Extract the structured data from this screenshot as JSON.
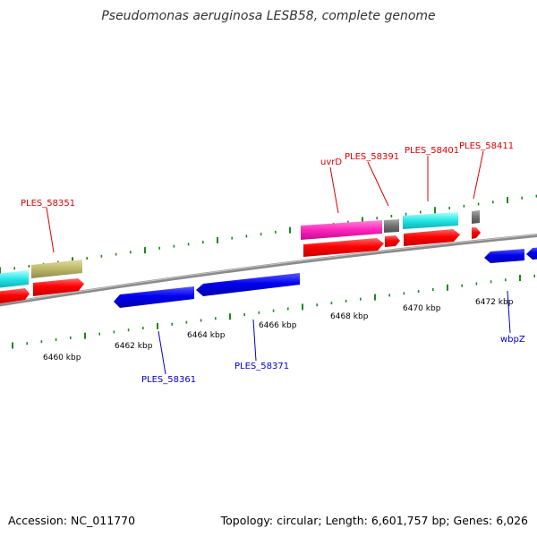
{
  "title": "Pseudomonas aeruginosa LESB58, complete genome",
  "footer": {
    "accession": "Accession: NC_011770",
    "summary": "Topology: circular; Length: 6,601,757 bp; Genes: 6,026"
  },
  "scale": {
    "unit": "kbp",
    "labels": [
      "6460 kbp",
      "6462 kbp",
      "6464 kbp",
      "6466 kbp",
      "6468 kbp",
      "6470 kbp",
      "6472 kbp"
    ]
  },
  "gene_labels_forward": [
    "PLES_58351",
    "uvrD",
    "PLES_58391",
    "PLES_58401",
    "PLES_58411"
  ],
  "gene_labels_reverse": [
    "PLES_58361",
    "PLES_58371",
    "wbpZ"
  ],
  "colors": {
    "forward_label": "#dd0000",
    "reverse_label": "#0000cc",
    "cds": "#ff0000",
    "reverse_cds": "#0000ee",
    "backbone": "#808080",
    "tick": "#1a8a1a",
    "rna_cyan": "#22e5e5",
    "rna_pink": "#ff22bb",
    "grey_feature": "#707070",
    "khaki_feature": "#bdb76b"
  }
}
